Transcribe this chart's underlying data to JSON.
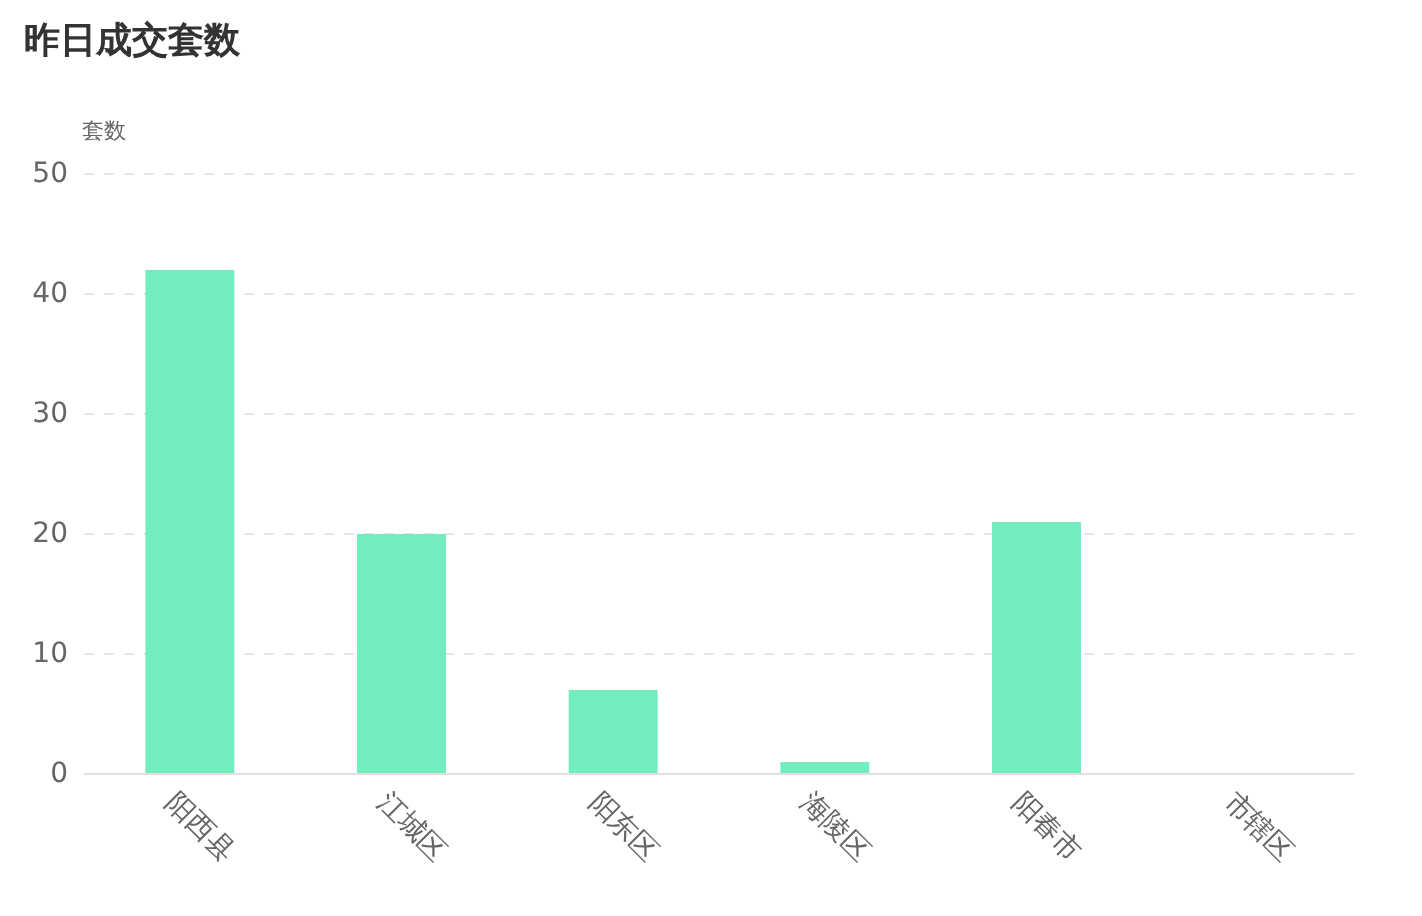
{
  "chart_data": {
    "type": "bar",
    "title": "昨日成交套数",
    "ylabel": "套数",
    "categories": [
      "阳西县",
      "江城区",
      "阳东区",
      "海陵区",
      "阳春市",
      "市辖区"
    ],
    "values": [
      42,
      20,
      7,
      1,
      21,
      0
    ],
    "color": "#72edbe",
    "ylim": [
      0,
      50
    ],
    "yticks": [
      0,
      10,
      20,
      30,
      40,
      50
    ],
    "grid": "y"
  }
}
